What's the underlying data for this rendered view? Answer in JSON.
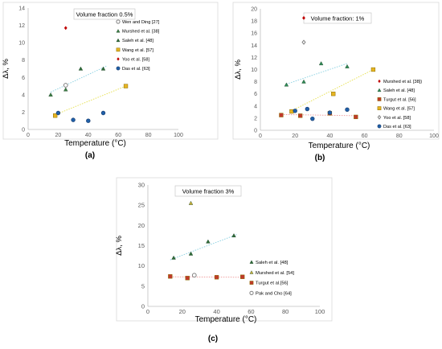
{
  "chart_data": [
    {
      "type": "scatter",
      "panel_label": "(a)",
      "annotation": "Volume fraction 0.5%",
      "xlabel": "Temperature (°C)",
      "ylabel": "Δλ, %",
      "xlim": [
        0,
        100
      ],
      "ylim": [
        0,
        14
      ],
      "xticks": [
        "0",
        "20",
        "40",
        "60",
        "80",
        "100"
      ],
      "yticks": [
        "0",
        "2",
        "4",
        "6",
        "8",
        "10",
        "12",
        "14"
      ],
      "grid": false,
      "legend_position": "right",
      "series": [
        {
          "name": "Wen and  Ding [27]",
          "marker": "circle-open",
          "color": "#7f7f7f",
          "points": [
            [
              25,
              5.1
            ]
          ]
        },
        {
          "name": "Murshed et al. [38]",
          "marker": "triangle",
          "color": "#3a7d44",
          "points": [
            [
              15,
              4.0
            ],
            [
              25,
              4.6
            ]
          ]
        },
        {
          "name": "Saleh et al. [48]",
          "marker": "triangle",
          "color": "#2e6b38",
          "points": [
            [
              35,
              7.0
            ],
            [
              50,
              7.0
            ]
          ],
          "trendline": [
            [
              15,
              4.3
            ],
            [
              52,
              7.3
            ]
          ],
          "trend_color": "#8fd3e3"
        },
        {
          "name": "Wang et al. [57]",
          "marker": "square",
          "color": "#e6b422",
          "points": [
            [
              18,
              1.6
            ],
            [
              65,
              5.0
            ]
          ],
          "trendline": [
            [
              18,
              1.7
            ],
            [
              65,
              5.0
            ]
          ],
          "trend_color": "#e8e25a"
        },
        {
          "name": "Yoo et al. [58]",
          "marker": "diamond",
          "color": "#c00000",
          "points": [
            [
              25,
              11.7
            ]
          ]
        },
        {
          "name": "Das et al. [63]",
          "marker": "circle",
          "color": "#1f5fa8",
          "points": [
            [
              20,
              1.9
            ],
            [
              30,
              1.1
            ],
            [
              40,
              1.0
            ],
            [
              50,
              1.9
            ]
          ]
        }
      ]
    },
    {
      "type": "scatter",
      "panel_label": "(b)",
      "annotation": "Volume fraction: 1%",
      "xlabel": "Temperature (°C)",
      "ylabel": "Δλ, %",
      "xlim": [
        0,
        100
      ],
      "ylim": [
        0,
        20
      ],
      "xticks": [
        "0",
        "20",
        "40",
        "60",
        "80",
        "100"
      ],
      "yticks": [
        "0",
        "2",
        "4",
        "6",
        "8",
        "10",
        "12",
        "14",
        "16",
        "18",
        "20"
      ],
      "grid": false,
      "legend_position": "right",
      "series": [
        {
          "name": "Murshed et al. [38])",
          "marker": "diamond",
          "color": "#c00000",
          "points": [
            [
              25,
              18.5
            ]
          ]
        },
        {
          "name": "Saleh et al. [48]",
          "marker": "triangle",
          "color": "#2e8b57",
          "points": [
            [
              15,
              7.5
            ],
            [
              25,
              8.0
            ],
            [
              35,
              11.0
            ],
            [
              50,
              10.5
            ]
          ],
          "trendline": [
            [
              15,
              7.6
            ],
            [
              50,
              11.0
            ]
          ],
          "trend_color": "#8fd3e3"
        },
        {
          "name": "Turgut et al. [56]",
          "marker": "square",
          "color": "#c0392b",
          "points": [
            [
              12,
              2.5
            ],
            [
              23,
              2.4
            ],
            [
              40,
              2.8
            ],
            [
              55,
              2.2
            ]
          ],
          "trendline": [
            [
              12,
              2.6
            ],
            [
              55,
              2.4
            ]
          ],
          "trend_color": "#f0a0a0"
        },
        {
          "name": "Wang et al. [57]",
          "marker": "square",
          "color": "#e6b422",
          "points": [
            [
              18,
              3.1
            ],
            [
              42,
              6.0
            ],
            [
              65,
              10.0
            ]
          ],
          "trendline": [
            [
              18,
              3.2
            ],
            [
              65,
              10.0
            ]
          ],
          "trend_color": "#e8e25a"
        },
        {
          "name": "Yoo et al. [58]",
          "marker": "diamond-open",
          "color": "#7f7f7f",
          "points": [
            [
              25,
              14.5
            ]
          ]
        },
        {
          "name": "Das et al. [63]",
          "marker": "circle",
          "color": "#1f5fa8",
          "points": [
            [
              20,
              3.2
            ],
            [
              27,
              3.5
            ],
            [
              30,
              1.9
            ],
            [
              40,
              2.9
            ],
            [
              50,
              3.4
            ]
          ]
        }
      ]
    },
    {
      "type": "scatter",
      "panel_label": "(c)",
      "annotation": "Volume fraction 3%",
      "xlabel": "Temperature (°C)",
      "ylabel": "Δλ, %",
      "xlim": [
        0,
        100
      ],
      "ylim": [
        0,
        30
      ],
      "xticks": [
        "0",
        "20",
        "40",
        "60",
        "80",
        "100"
      ],
      "yticks": [
        "0",
        "5",
        "10",
        "15",
        "20",
        "25",
        "30"
      ],
      "grid": false,
      "legend_position": "right",
      "series": [
        {
          "name": "Saleh et al. [48]",
          "marker": "triangle",
          "color": "#2e6b38",
          "points": [
            [
              15,
              12.0
            ],
            [
              25,
              13.0
            ],
            [
              35,
              16.0
            ],
            [
              50,
              17.5
            ]
          ],
          "trendline": [
            [
              13,
              11.5
            ],
            [
              52,
              17.8
            ]
          ],
          "trend_color": "#8fd3e3"
        },
        {
          "name": "Murshed et al. [54]",
          "marker": "triangle",
          "color": "#c9b037",
          "points": [
            [
              25,
              25.5
            ]
          ]
        },
        {
          "name": "Turgut et al.[56]",
          "marker": "square",
          "color": "#c0392b",
          "points": [
            [
              13,
              7.4
            ],
            [
              23,
              7.0
            ],
            [
              40,
              7.2
            ],
            [
              55,
              7.3
            ]
          ],
          "trendline": [
            [
              13,
              7.3
            ],
            [
              55,
              7.2
            ]
          ],
          "trend_color": "#f0a0a0"
        },
        {
          "name": "Pak and Cho [64]",
          "marker": "circle-open",
          "color": "#7f7f7f",
          "points": [
            [
              27,
              7.7
            ]
          ]
        }
      ]
    }
  ]
}
